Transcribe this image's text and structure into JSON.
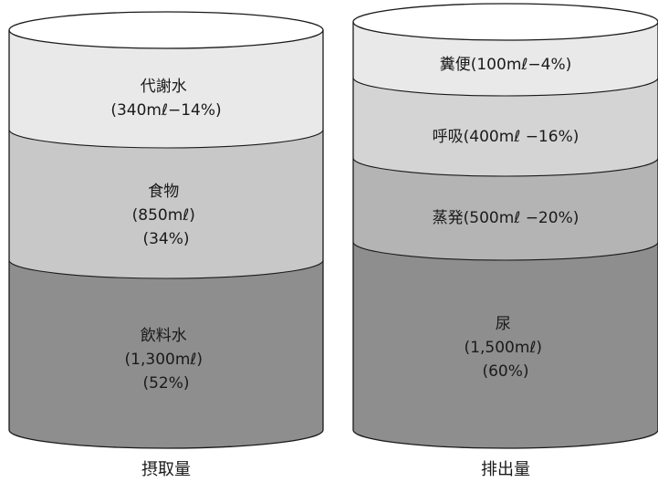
{
  "intake": {
    "caption": "摂取量",
    "segments": [
      {
        "lines": [
          "代謝水",
          "(340mℓ−14%)"
        ],
        "color": "#e9e9e9"
      },
      {
        "lines": [
          "食物",
          "(850mℓ)",
          "(34%)"
        ],
        "color": "#c8c8c8"
      },
      {
        "lines": [
          "飲料水",
          "(1,300mℓ)",
          "(52%)"
        ],
        "color": "#8e8e8e"
      }
    ]
  },
  "output": {
    "caption": "排出量",
    "segments": [
      {
        "lines": [
          "糞便(100mℓ−4%)"
        ],
        "color": "#e9e9e9"
      },
      {
        "lines": [
          "呼吸(400mℓ −16%)"
        ],
        "color": "#d4d4d4"
      },
      {
        "lines": [
          "蒸発(500mℓ −20%)"
        ],
        "color": "#b4b4b4"
      },
      {
        "lines": [
          "尿",
          "(1,500mℓ)",
          "(60%)"
        ],
        "color": "#8e8e8e"
      }
    ]
  }
}
